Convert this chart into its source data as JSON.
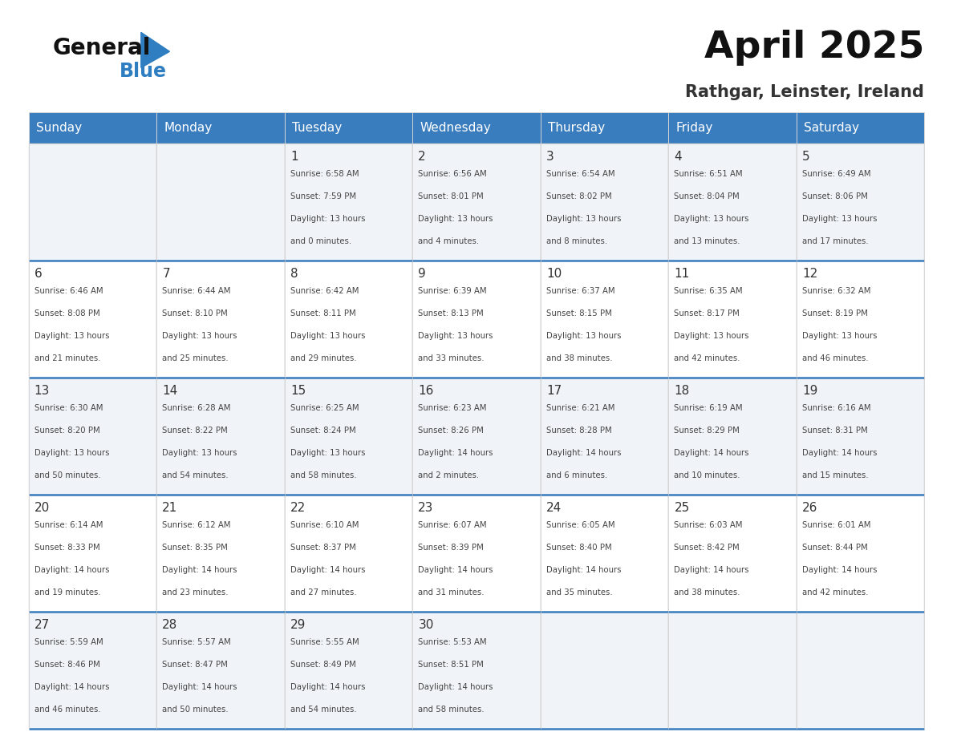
{
  "title": "April 2025",
  "subtitle": "Rathgar, Leinster, Ireland",
  "header_bg_color": "#3a7dbf",
  "header_text_color": "#ffffff",
  "day_names": [
    "Sunday",
    "Monday",
    "Tuesday",
    "Wednesday",
    "Thursday",
    "Friday",
    "Saturday"
  ],
  "cell_bg_even": "#f0f4f8",
  "cell_bg_odd": "#ffffff",
  "divider_color": "#3a7dbf",
  "text_color": "#333333",
  "num_color": "#333333",
  "logo_general_color": "#111111",
  "logo_blue_color": "#2e7ec1",
  "days": [
    {
      "date": 1,
      "col": 2,
      "row": 0,
      "sunrise": "6:58 AM",
      "sunset": "7:59 PM",
      "daylight": "13 hours and 0 minutes."
    },
    {
      "date": 2,
      "col": 3,
      "row": 0,
      "sunrise": "6:56 AM",
      "sunset": "8:01 PM",
      "daylight": "13 hours and 4 minutes."
    },
    {
      "date": 3,
      "col": 4,
      "row": 0,
      "sunrise": "6:54 AM",
      "sunset": "8:02 PM",
      "daylight": "13 hours and 8 minutes."
    },
    {
      "date": 4,
      "col": 5,
      "row": 0,
      "sunrise": "6:51 AM",
      "sunset": "8:04 PM",
      "daylight": "13 hours and 13 minutes."
    },
    {
      "date": 5,
      "col": 6,
      "row": 0,
      "sunrise": "6:49 AM",
      "sunset": "8:06 PM",
      "daylight": "13 hours and 17 minutes."
    },
    {
      "date": 6,
      "col": 0,
      "row": 1,
      "sunrise": "6:46 AM",
      "sunset": "8:08 PM",
      "daylight": "13 hours and 21 minutes."
    },
    {
      "date": 7,
      "col": 1,
      "row": 1,
      "sunrise": "6:44 AM",
      "sunset": "8:10 PM",
      "daylight": "13 hours and 25 minutes."
    },
    {
      "date": 8,
      "col": 2,
      "row": 1,
      "sunrise": "6:42 AM",
      "sunset": "8:11 PM",
      "daylight": "13 hours and 29 minutes."
    },
    {
      "date": 9,
      "col": 3,
      "row": 1,
      "sunrise": "6:39 AM",
      "sunset": "8:13 PM",
      "daylight": "13 hours and 33 minutes."
    },
    {
      "date": 10,
      "col": 4,
      "row": 1,
      "sunrise": "6:37 AM",
      "sunset": "8:15 PM",
      "daylight": "13 hours and 38 minutes."
    },
    {
      "date": 11,
      "col": 5,
      "row": 1,
      "sunrise": "6:35 AM",
      "sunset": "8:17 PM",
      "daylight": "13 hours and 42 minutes."
    },
    {
      "date": 12,
      "col": 6,
      "row": 1,
      "sunrise": "6:32 AM",
      "sunset": "8:19 PM",
      "daylight": "13 hours and 46 minutes."
    },
    {
      "date": 13,
      "col": 0,
      "row": 2,
      "sunrise": "6:30 AM",
      "sunset": "8:20 PM",
      "daylight": "13 hours and 50 minutes."
    },
    {
      "date": 14,
      "col": 1,
      "row": 2,
      "sunrise": "6:28 AM",
      "sunset": "8:22 PM",
      "daylight": "13 hours and 54 minutes."
    },
    {
      "date": 15,
      "col": 2,
      "row": 2,
      "sunrise": "6:25 AM",
      "sunset": "8:24 PM",
      "daylight": "13 hours and 58 minutes."
    },
    {
      "date": 16,
      "col": 3,
      "row": 2,
      "sunrise": "6:23 AM",
      "sunset": "8:26 PM",
      "daylight": "14 hours and 2 minutes."
    },
    {
      "date": 17,
      "col": 4,
      "row": 2,
      "sunrise": "6:21 AM",
      "sunset": "8:28 PM",
      "daylight": "14 hours and 6 minutes."
    },
    {
      "date": 18,
      "col": 5,
      "row": 2,
      "sunrise": "6:19 AM",
      "sunset": "8:29 PM",
      "daylight": "14 hours and 10 minutes."
    },
    {
      "date": 19,
      "col": 6,
      "row": 2,
      "sunrise": "6:16 AM",
      "sunset": "8:31 PM",
      "daylight": "14 hours and 15 minutes."
    },
    {
      "date": 20,
      "col": 0,
      "row": 3,
      "sunrise": "6:14 AM",
      "sunset": "8:33 PM",
      "daylight": "14 hours and 19 minutes."
    },
    {
      "date": 21,
      "col": 1,
      "row": 3,
      "sunrise": "6:12 AM",
      "sunset": "8:35 PM",
      "daylight": "14 hours and 23 minutes."
    },
    {
      "date": 22,
      "col": 2,
      "row": 3,
      "sunrise": "6:10 AM",
      "sunset": "8:37 PM",
      "daylight": "14 hours and 27 minutes."
    },
    {
      "date": 23,
      "col": 3,
      "row": 3,
      "sunrise": "6:07 AM",
      "sunset": "8:39 PM",
      "daylight": "14 hours and 31 minutes."
    },
    {
      "date": 24,
      "col": 4,
      "row": 3,
      "sunrise": "6:05 AM",
      "sunset": "8:40 PM",
      "daylight": "14 hours and 35 minutes."
    },
    {
      "date": 25,
      "col": 5,
      "row": 3,
      "sunrise": "6:03 AM",
      "sunset": "8:42 PM",
      "daylight": "14 hours and 38 minutes."
    },
    {
      "date": 26,
      "col": 6,
      "row": 3,
      "sunrise": "6:01 AM",
      "sunset": "8:44 PM",
      "daylight": "14 hours and 42 minutes."
    },
    {
      "date": 27,
      "col": 0,
      "row": 4,
      "sunrise": "5:59 AM",
      "sunset": "8:46 PM",
      "daylight": "14 hours and 46 minutes."
    },
    {
      "date": 28,
      "col": 1,
      "row": 4,
      "sunrise": "5:57 AM",
      "sunset": "8:47 PM",
      "daylight": "14 hours and 50 minutes."
    },
    {
      "date": 29,
      "col": 2,
      "row": 4,
      "sunrise": "5:55 AM",
      "sunset": "8:49 PM",
      "daylight": "14 hours and 54 minutes."
    },
    {
      "date": 30,
      "col": 3,
      "row": 4,
      "sunrise": "5:53 AM",
      "sunset": "8:51 PM",
      "daylight": "14 hours and 58 minutes."
    }
  ]
}
